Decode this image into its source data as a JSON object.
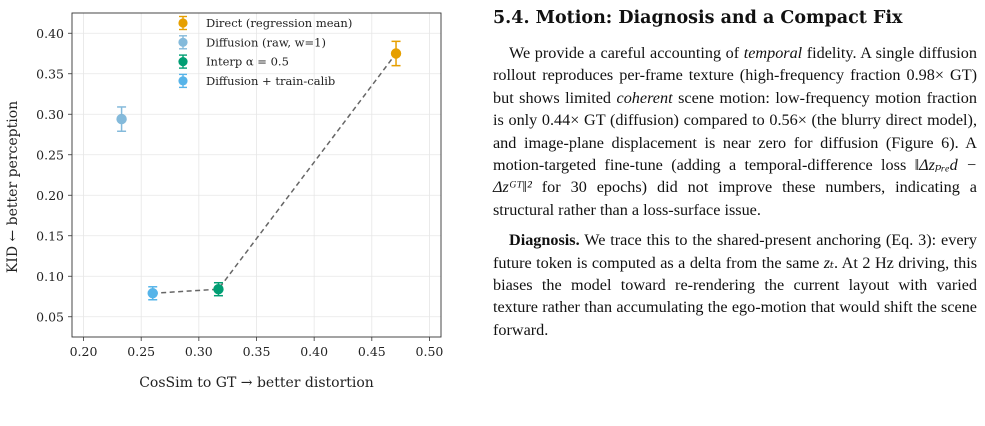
{
  "chart_data": {
    "type": "scatter",
    "xlabel": "CosSim to GT  → better distortion",
    "ylabel": "KID  ← better perception",
    "xlim": [
      0.19,
      0.51
    ],
    "ylim": [
      0.025,
      0.425
    ],
    "xticks": [
      0.2,
      0.25,
      0.3,
      0.35,
      0.4,
      0.45,
      0.5
    ],
    "xtick_labels": [
      "0.20",
      "0.25",
      "0.30",
      "0.35",
      "0.40",
      "0.45",
      "0.50"
    ],
    "yticks": [
      0.05,
      0.1,
      0.15,
      0.2,
      0.25,
      0.3,
      0.35,
      0.4
    ],
    "ytick_labels": [
      "0.05",
      "0.10",
      "0.15",
      "0.20",
      "0.25",
      "0.30",
      "0.35",
      "0.40"
    ],
    "grid": true,
    "legend_position": "top-center",
    "series": [
      {
        "name": "Direct (regression mean)",
        "color": "#E69F00",
        "x": 0.471,
        "y": 0.375,
        "yerr": 0.015,
        "opacity": 1.0
      },
      {
        "name": "Diffusion (raw, w=1)",
        "color": "#5BA3CF",
        "x": 0.233,
        "y": 0.294,
        "yerr": 0.015,
        "opacity": 0.75
      },
      {
        "name": "Interp α = 0.5",
        "color": "#009E73",
        "x": 0.317,
        "y": 0.084,
        "yerr": 0.008,
        "opacity": 1.0
      },
      {
        "name": "Diffusion + train-calib",
        "color": "#56B4E9",
        "x": 0.26,
        "y": 0.079,
        "yerr": 0.008,
        "opacity": 1.0
      }
    ],
    "frontier": {
      "x": [
        0.26,
        0.317,
        0.471
      ],
      "y": [
        0.079,
        0.084,
        0.375
      ],
      "color": "#666666"
    }
  },
  "text": {
    "heading": "5.4. Motion: Diagnosis and a Compact Fix",
    "p1_a": "We provide a careful accounting of ",
    "p1_em1": "temporal",
    "p1_b": " fidelity. A single diffusion rollout reproduces per-frame texture (high-frequency fraction 0.98× GT) but shows limited ",
    "p1_em2": "coherent",
    "p1_c": " scene motion: low-frequency motion fraction is only 0.44× GT (diffusion) compared to 0.56× (the blurry direct model), and image-plane displacement is near zero for diffusion (Figure 6). A motion-targeted fine-tune (adding a temporal-difference loss ",
    "p1_formula": "‖Δzₚᵣₑd − Δzᴳᵀ‖²",
    "p1_d": " for 30 epochs) did not improve these numbers, indicating a structural rather than a loss-surface issue.",
    "p2_lead": "Diagnosis.",
    "p2_a": " We trace this to the shared-present anchoring (Eq. 3): every future token is computed as a delta from the same ",
    "p2_var": "zₜ",
    "p2_b": ". At 2 Hz driving, this biases the model toward re-rendering the current layout with varied texture rather than accumulating the ego-motion that would shift the scene forward."
  }
}
